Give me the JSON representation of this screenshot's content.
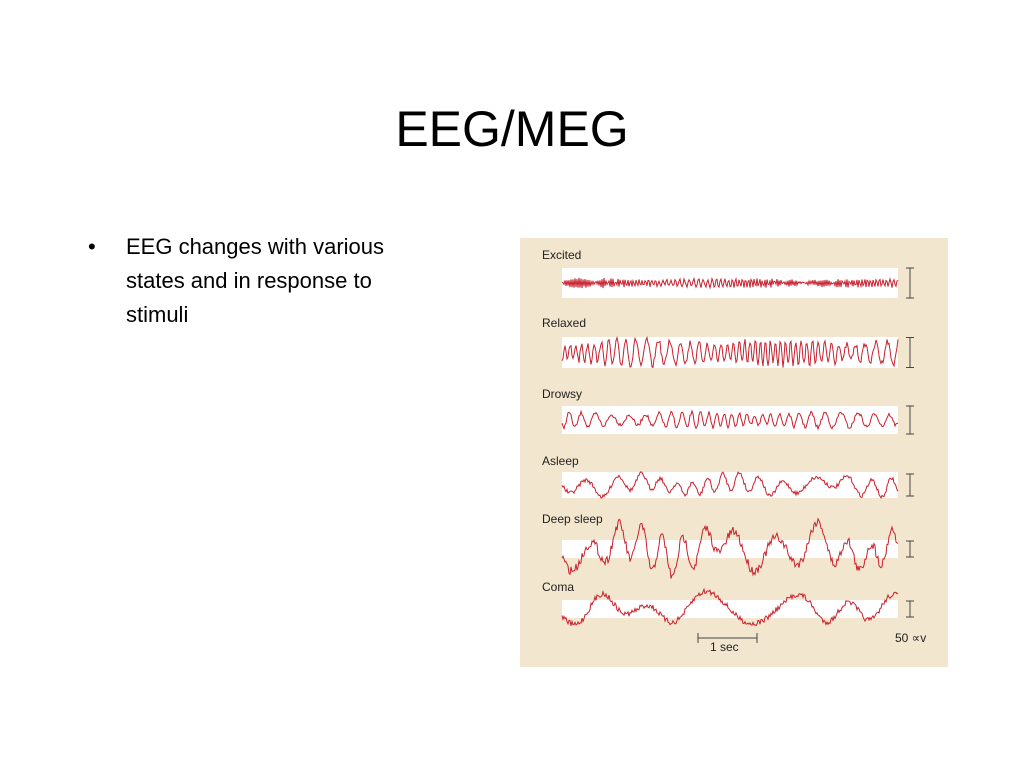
{
  "header": {
    "title": "EEG/MEG"
  },
  "body": {
    "bullets": [
      "EEG changes with various states and in response to stimuli"
    ]
  },
  "figure": {
    "states": [
      "Excited",
      "Relaxed",
      "Drowsy",
      "Asleep",
      "Deep sleep",
      "Coma"
    ],
    "time_scale": "1 sec",
    "amplitude_scale": "50 ∝v"
  }
}
